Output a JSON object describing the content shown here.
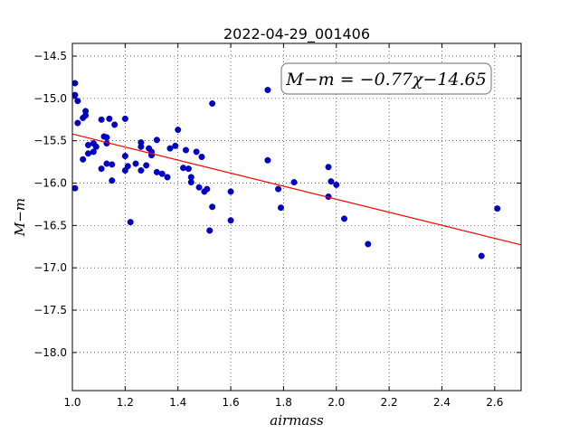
{
  "chart_data": {
    "type": "scatter",
    "title": "2022-04-29_001406",
    "xlabel": "airmass",
    "ylabel": "M−m",
    "xlim": [
      1.0,
      2.7
    ],
    "ylim": [
      -18.45,
      -14.35
    ],
    "ylim_note": "inverted",
    "y_inverted": true,
    "grid": true,
    "x_ticks": [
      1.0,
      1.2,
      1.4,
      1.6,
      1.8,
      2.0,
      2.2,
      2.4,
      2.6
    ],
    "x_tick_labels": [
      "1.0",
      "1.2",
      "1.4",
      "1.6",
      "1.8",
      "2.0",
      "2.2",
      "2.4",
      "2.6"
    ],
    "y_ticks": [
      -14.5,
      -15.0,
      -15.5,
      -16.0,
      -16.5,
      -17.0,
      -17.5,
      -18.0
    ],
    "y_tick_labels": [
      "−14.5",
      "−15.0",
      "−15.5",
      "−16.0",
      "−16.5",
      "−17.0",
      "−17.5",
      "−18.0"
    ],
    "annotation": "M−m = −0.77χ−14.65",
    "fit": {
      "slope": -0.77,
      "intercept": -14.65,
      "color": "#ff0000"
    },
    "point_color": "#0000cc",
    "points": [
      [
        1.01,
        -14.82
      ],
      [
        1.01,
        -14.96
      ],
      [
        1.02,
        -15.03
      ],
      [
        1.01,
        -16.06
      ],
      [
        1.02,
        -15.29
      ],
      [
        1.04,
        -15.23
      ],
      [
        1.05,
        -15.15
      ],
      [
        1.05,
        -15.2
      ],
      [
        1.04,
        -15.72
      ],
      [
        1.06,
        -15.55
      ],
      [
        1.06,
        -15.65
      ],
      [
        1.08,
        -15.53
      ],
      [
        1.08,
        -15.63
      ],
      [
        1.09,
        -15.57
      ],
      [
        1.11,
        -15.25
      ],
      [
        1.12,
        -15.45
      ],
      [
        1.13,
        -15.46
      ],
      [
        1.13,
        -15.53
      ],
      [
        1.14,
        -15.24
      ],
      [
        1.11,
        -15.83
      ],
      [
        1.13,
        -15.77
      ],
      [
        1.15,
        -15.78
      ],
      [
        1.16,
        -15.31
      ],
      [
        1.15,
        -15.97
      ],
      [
        1.2,
        -15.24
      ],
      [
        1.2,
        -15.68
      ],
      [
        1.2,
        -15.85
      ],
      [
        1.21,
        -15.8
      ],
      [
        1.24,
        -15.77
      ],
      [
        1.22,
        -16.46
      ],
      [
        1.26,
        -15.52
      ],
      [
        1.26,
        -15.57
      ],
      [
        1.26,
        -15.85
      ],
      [
        1.28,
        -15.79
      ],
      [
        1.29,
        -15.59
      ],
      [
        1.3,
        -15.67
      ],
      [
        1.3,
        -15.63
      ],
      [
        1.32,
        -15.49
      ],
      [
        1.32,
        -15.87
      ],
      [
        1.34,
        -15.89
      ],
      [
        1.36,
        -15.93
      ],
      [
        1.37,
        -15.59
      ],
      [
        1.39,
        -15.56
      ],
      [
        1.4,
        -15.37
      ],
      [
        1.42,
        -15.82
      ],
      [
        1.43,
        -15.61
      ],
      [
        1.44,
        -15.83
      ],
      [
        1.45,
        -15.99
      ],
      [
        1.45,
        -15.93
      ],
      [
        1.47,
        -15.63
      ],
      [
        1.49,
        -15.69
      ],
      [
        1.48,
        -16.05
      ],
      [
        1.5,
        -16.1
      ],
      [
        1.51,
        -16.07
      ],
      [
        1.52,
        -16.56
      ],
      [
        1.53,
        -16.28
      ],
      [
        1.53,
        -15.06
      ],
      [
        1.6,
        -16.1
      ],
      [
        1.6,
        -16.44
      ],
      [
        1.74,
        -14.9
      ],
      [
        1.74,
        -15.73
      ],
      [
        1.78,
        -16.07
      ],
      [
        1.79,
        -16.29
      ],
      [
        1.84,
        -15.99
      ],
      [
        1.97,
        -15.81
      ],
      [
        1.98,
        -15.98
      ],
      [
        1.97,
        -16.16
      ],
      [
        2.0,
        -16.02
      ],
      [
        2.03,
        -16.42
      ],
      [
        2.12,
        -16.72
      ],
      [
        2.55,
        -16.86
      ],
      [
        2.61,
        -16.3
      ]
    ]
  }
}
